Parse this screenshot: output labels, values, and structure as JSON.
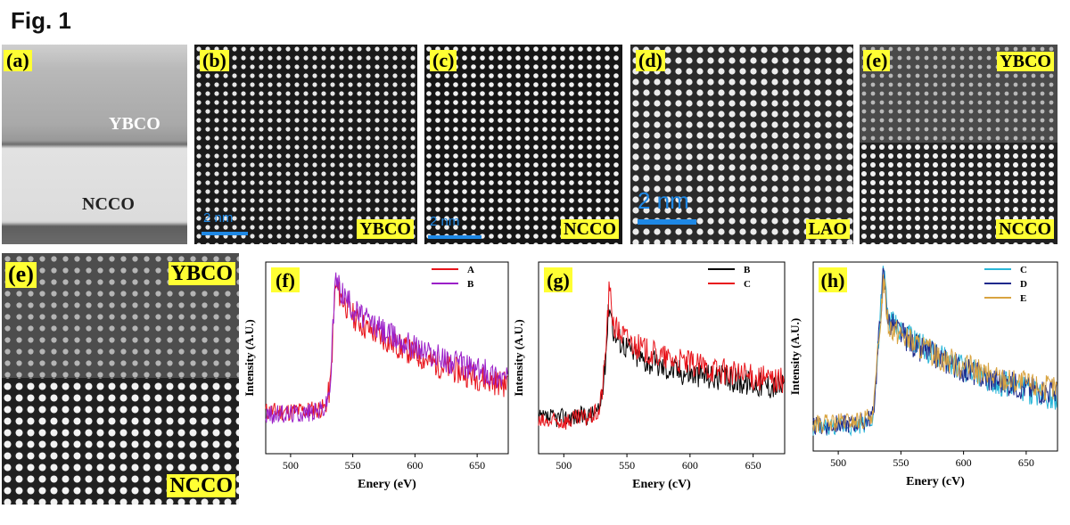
{
  "figure": {
    "title": "Fig. 1"
  },
  "panels": {
    "a": {
      "tag": "(a)",
      "labels": [
        "YBCO",
        "NCCO"
      ]
    },
    "b": {
      "tag": "(b)",
      "material": "YBCO",
      "scale": "2 nm"
    },
    "c": {
      "tag": "(c)",
      "material": "NCCO",
      "scale": "2 nm"
    },
    "d": {
      "tag": "(d)",
      "material": "LAO",
      "scale": "2 nm"
    },
    "e": {
      "tag": "(e)",
      "top": "YBCO",
      "bottom": "NCCO"
    },
    "e2": {
      "tag": "(e)",
      "top": "YBCO",
      "bottom": "NCCO"
    }
  },
  "chart_data": [
    {
      "type": "line",
      "tag": "(f)",
      "xlabel": "Enery (eV)",
      "ylabel": "Intensity (A.U.)",
      "xlim": [
        480,
        675
      ],
      "xticks": [
        500,
        550,
        600,
        650
      ],
      "series": [
        {
          "name": "A",
          "color": "#e8141b",
          "x": [
            480,
            500,
            520,
            528,
            532,
            536,
            540,
            550,
            560,
            580,
            600,
            620,
            640,
            660,
            675
          ],
          "y": [
            0.22,
            0.22,
            0.23,
            0.24,
            0.35,
            0.88,
            0.82,
            0.72,
            0.66,
            0.58,
            0.52,
            0.46,
            0.42,
            0.38,
            0.36
          ]
        },
        {
          "name": "B",
          "color": "#9b1fc8",
          "x": [
            480,
            500,
            520,
            528,
            532,
            536,
            540,
            550,
            560,
            580,
            600,
            620,
            640,
            660,
            675
          ],
          "y": [
            0.2,
            0.21,
            0.22,
            0.24,
            0.36,
            0.92,
            0.86,
            0.76,
            0.7,
            0.62,
            0.56,
            0.5,
            0.46,
            0.42,
            0.4
          ]
        }
      ]
    },
    {
      "type": "line",
      "tag": "(g)",
      "xlabel": "Enery (cV)",
      "ylabel": "Intensity (A.U.)",
      "xlim": [
        480,
        675
      ],
      "xticks": [
        500,
        550,
        600,
        650
      ],
      "series": [
        {
          "name": "B",
          "color": "#000000",
          "x": [
            480,
            500,
            520,
            528,
            532,
            536,
            540,
            550,
            560,
            580,
            600,
            620,
            640,
            660,
            675
          ],
          "y": [
            0.18,
            0.19,
            0.2,
            0.22,
            0.4,
            0.8,
            0.62,
            0.56,
            0.5,
            0.45,
            0.42,
            0.4,
            0.38,
            0.36,
            0.35
          ]
        },
        {
          "name": "C",
          "color": "#e8141b",
          "x": [
            480,
            500,
            520,
            528,
            532,
            536,
            540,
            550,
            560,
            580,
            600,
            620,
            640,
            660,
            675
          ],
          "y": [
            0.16,
            0.17,
            0.19,
            0.22,
            0.42,
            0.86,
            0.66,
            0.6,
            0.55,
            0.5,
            0.47,
            0.44,
            0.41,
            0.39,
            0.38
          ]
        }
      ]
    },
    {
      "type": "line",
      "tag": "(h)",
      "xlabel": "Enery (cV)",
      "ylabel": "Intensity (A.U.)",
      "xlim": [
        480,
        675
      ],
      "xticks": [
        500,
        550,
        600,
        650
      ],
      "series": [
        {
          "name": "C",
          "color": "#29b6d8",
          "x": [
            480,
            500,
            520,
            528,
            532,
            536,
            540,
            550,
            560,
            580,
            600,
            620,
            640,
            660,
            675
          ],
          "y": [
            0.12,
            0.13,
            0.14,
            0.18,
            0.55,
            0.98,
            0.7,
            0.64,
            0.58,
            0.5,
            0.44,
            0.38,
            0.34,
            0.3,
            0.28
          ]
        },
        {
          "name": "D",
          "color": "#1f2a8c",
          "x": [
            480,
            500,
            520,
            528,
            532,
            536,
            540,
            550,
            560,
            580,
            600,
            620,
            640,
            660,
            675
          ],
          "y": [
            0.13,
            0.14,
            0.15,
            0.19,
            0.56,
            0.94,
            0.68,
            0.62,
            0.56,
            0.49,
            0.43,
            0.38,
            0.35,
            0.32,
            0.31
          ]
        },
        {
          "name": "E",
          "color": "#d9a441",
          "x": [
            480,
            500,
            520,
            528,
            532,
            536,
            540,
            550,
            560,
            580,
            600,
            620,
            640,
            660,
            675
          ],
          "y": [
            0.14,
            0.15,
            0.16,
            0.2,
            0.54,
            0.92,
            0.67,
            0.62,
            0.57,
            0.5,
            0.45,
            0.4,
            0.37,
            0.34,
            0.33
          ]
        }
      ]
    }
  ]
}
